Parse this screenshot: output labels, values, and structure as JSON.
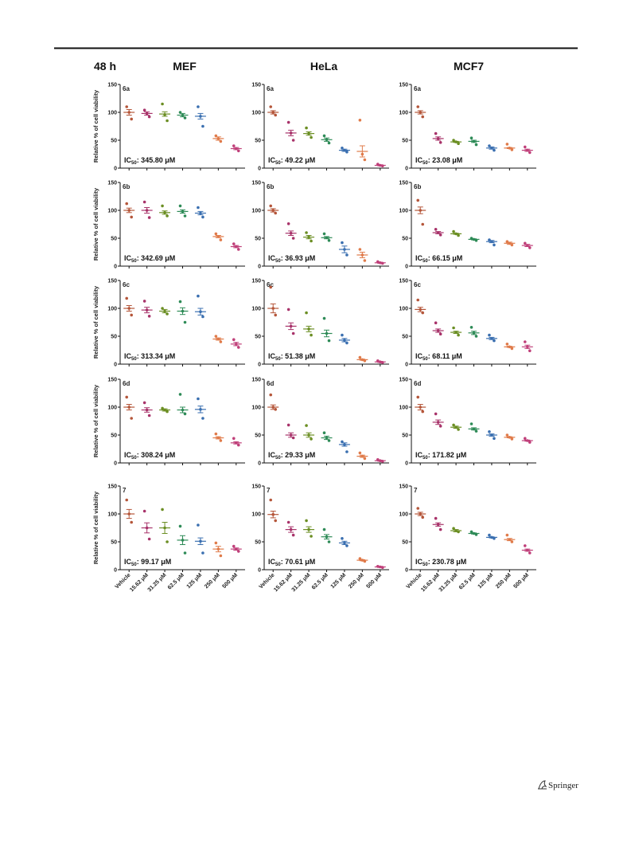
{
  "header": {
    "time": "48 h",
    "columns": [
      "MEF",
      "HeLa",
      "MCF7"
    ]
  },
  "footer": {
    "publisher": "Springer"
  },
  "chart_data": [
    {
      "type": "dotplot",
      "panel": "6a",
      "ylabel": "Relative % of cell viability",
      "ylim": [
        0,
        150
      ],
      "yticks": [
        0,
        50,
        100,
        150
      ],
      "ic50_prefix": "IC",
      "ic50_sub": "50",
      "ic50_value": ": 345.80 μM",
      "colors": [
        "#b5563a",
        "#a8336a",
        "#6b8e23",
        "#2e8b57",
        "#3a6fb0",
        "#e07b4a",
        "#c0407a"
      ],
      "means": [
        100,
        98,
        97,
        95,
        93,
        53,
        35
      ],
      "sem": [
        5,
        3,
        4,
        3,
        5,
        3,
        2
      ],
      "points": [
        [
          110,
          100,
          88
        ],
        [
          104,
          98,
          92
        ],
        [
          115,
          96,
          85
        ],
        [
          100,
          95,
          90
        ],
        [
          110,
          93,
          75
        ],
        [
          58,
          53,
          48
        ],
        [
          40,
          35,
          31
        ]
      ]
    },
    {
      "type": "dotplot",
      "panel": "6a",
      "ylim": [
        0,
        150
      ],
      "yticks": [
        0,
        50,
        100,
        150
      ],
      "ic50_prefix": "IC",
      "ic50_sub": "50",
      "ic50_value": ": 49.22 μM",
      "colors": [
        "#b5563a",
        "#a8336a",
        "#6b8e23",
        "#2e8b57",
        "#3a6fb0",
        "#e07b4a",
        "#c0407a"
      ],
      "means": [
        100,
        63,
        62,
        51,
        32,
        30,
        5
      ],
      "sem": [
        3,
        5,
        3,
        3,
        2,
        10,
        1
      ],
      "points": [
        [
          110,
          100,
          95
        ],
        [
          82,
          63,
          50
        ],
        [
          72,
          62,
          55
        ],
        [
          58,
          51,
          45
        ],
        [
          36,
          32,
          29
        ],
        [
          86,
          25,
          15
        ],
        [
          7,
          5,
          4
        ]
      ]
    },
    {
      "type": "dotplot",
      "panel": "6a",
      "ylim": [
        0,
        150
      ],
      "yticks": [
        0,
        50,
        100,
        150
      ],
      "ic50_prefix": "IC",
      "ic50_sub": "50",
      "ic50_value": ": 23.08 μM",
      "colors": [
        "#b5563a",
        "#a8336a",
        "#6b8e23",
        "#2e8b57",
        "#3a6fb0",
        "#e07b4a",
        "#c0407a"
      ],
      "means": [
        100,
        53,
        47,
        48,
        36,
        36,
        32
      ],
      "sem": [
        3,
        3,
        1,
        2,
        2,
        1,
        2
      ],
      "points": [
        [
          110,
          100,
          92
        ],
        [
          62,
          53,
          46
        ],
        [
          50,
          47,
          44
        ],
        [
          54,
          48,
          42
        ],
        [
          40,
          36,
          32
        ],
        [
          43,
          36,
          33
        ],
        [
          38,
          32,
          28
        ]
      ]
    },
    {
      "type": "dotplot",
      "panel": "6b",
      "ylabel": "Relative % of cell viability",
      "ylim": [
        0,
        150
      ],
      "yticks": [
        0,
        50,
        100,
        150
      ],
      "ic50_prefix": "IC",
      "ic50_sub": "50",
      "ic50_value": ": 342.69 μM",
      "colors": [
        "#b5563a",
        "#a8336a",
        "#6b8e23",
        "#2e8b57",
        "#3a6fb0",
        "#e07b4a",
        "#c0407a"
      ],
      "means": [
        100,
        100,
        96,
        98,
        95,
        53,
        35
      ],
      "sem": [
        4,
        5,
        3,
        3,
        3,
        2,
        2
      ],
      "points": [
        [
          112,
          100,
          88
        ],
        [
          115,
          100,
          87
        ],
        [
          108,
          96,
          90
        ],
        [
          108,
          98,
          90
        ],
        [
          105,
          95,
          88
        ],
        [
          58,
          53,
          47
        ],
        [
          40,
          35,
          30
        ]
      ]
    },
    {
      "type": "dotplot",
      "panel": "6b",
      "ylim": [
        0,
        150
      ],
      "yticks": [
        0,
        50,
        100,
        150
      ],
      "ic50_prefix": "IC",
      "ic50_sub": "50",
      "ic50_value": ": 36.93 μM",
      "colors": [
        "#b5563a",
        "#a8336a",
        "#6b8e23",
        "#2e8b57",
        "#3a6fb0",
        "#e07b4a",
        "#c0407a"
      ],
      "means": [
        100,
        59,
        52,
        51,
        30,
        20,
        6
      ],
      "sem": [
        3,
        4,
        3,
        2,
        6,
        5,
        1
      ],
      "points": [
        [
          108,
          100,
          95
        ],
        [
          76,
          59,
          50
        ],
        [
          60,
          52,
          45
        ],
        [
          58,
          51,
          46
        ],
        [
          42,
          30,
          20
        ],
        [
          30,
          20,
          10
        ],
        [
          8,
          6,
          5
        ]
      ]
    },
    {
      "type": "dotplot",
      "panel": "6b",
      "ylim": [
        0,
        150
      ],
      "yticks": [
        0,
        50,
        100,
        150
      ],
      "ic50_prefix": "IC",
      "ic50_sub": "50",
      "ic50_value": ": 66.15 μM",
      "colors": [
        "#b5563a",
        "#a8336a",
        "#6b8e23",
        "#2e8b57",
        "#3a6fb0",
        "#e07b4a",
        "#c0407a"
      ],
      "means": [
        100,
        60,
        58,
        48,
        44,
        41,
        37
      ],
      "sem": [
        6,
        2,
        1,
        1,
        2,
        2,
        2
      ],
      "points": [
        [
          118,
          100,
          75
        ],
        [
          66,
          60,
          56
        ],
        [
          62,
          58,
          55
        ],
        [
          50,
          48,
          46
        ],
        [
          47,
          44,
          38
        ],
        [
          44,
          41,
          38
        ],
        [
          41,
          37,
          33
        ]
      ]
    },
    {
      "type": "dotplot",
      "panel": "6c",
      "ylabel": "Relative % of cell viability",
      "ylim": [
        0,
        150
      ],
      "yticks": [
        0,
        50,
        100,
        150
      ],
      "ic50_prefix": "IC",
      "ic50_sub": "50",
      "ic50_value": ": 313.34 μM",
      "colors": [
        "#b5563a",
        "#a8336a",
        "#6b8e23",
        "#2e8b57",
        "#3a6fb0",
        "#e07b4a",
        "#c0407a"
      ],
      "means": [
        100,
        97,
        95,
        95,
        94,
        45,
        36
      ],
      "sem": [
        5,
        5,
        3,
        6,
        6,
        2,
        3
      ],
      "points": [
        [
          118,
          100,
          88
        ],
        [
          113,
          97,
          86
        ],
        [
          100,
          95,
          90
        ],
        [
          112,
          95,
          75
        ],
        [
          122,
          94,
          85
        ],
        [
          50,
          45,
          40
        ],
        [
          44,
          36,
          30
        ]
      ]
    },
    {
      "type": "dotplot",
      "panel": "6c",
      "ylim": [
        0,
        150
      ],
      "yticks": [
        0,
        50,
        100,
        150
      ],
      "ic50_prefix": "IC",
      "ic50_sub": "50",
      "ic50_value": ": 51.38 μM",
      "colors": [
        "#b5563a",
        "#a8336a",
        "#6b8e23",
        "#2e8b57",
        "#3a6fb0",
        "#e07b4a",
        "#c0407a"
      ],
      "means": [
        100,
        68,
        63,
        55,
        43,
        8,
        4
      ],
      "sem": [
        8,
        6,
        5,
        6,
        3,
        1,
        1
      ],
      "points": [
        [
          138,
          100,
          88
        ],
        [
          98,
          68,
          55
        ],
        [
          92,
          63,
          52
        ],
        [
          82,
          55,
          42
        ],
        [
          52,
          43,
          38
        ],
        [
          12,
          8,
          6
        ],
        [
          6,
          4,
          3
        ]
      ]
    },
    {
      "type": "dotplot",
      "panel": "6c",
      "ylim": [
        0,
        150
      ],
      "yticks": [
        0,
        50,
        100,
        150
      ],
      "ic50_prefix": "IC",
      "ic50_sub": "50",
      "ic50_value": ": 68.11 μM",
      "colors": [
        "#b5563a",
        "#a8336a",
        "#6b8e23",
        "#2e8b57",
        "#3a6fb0",
        "#e07b4a",
        "#c0407a"
      ],
      "means": [
        98,
        60,
        57,
        56,
        46,
        31,
        31
      ],
      "sem": [
        4,
        3,
        2,
        3,
        2,
        1,
        3
      ],
      "points": [
        [
          115,
          98,
          92
        ],
        [
          74,
          60,
          54
        ],
        [
          65,
          57,
          52
        ],
        [
          66,
          56,
          50
        ],
        [
          52,
          46,
          42
        ],
        [
          36,
          31,
          28
        ],
        [
          40,
          31,
          24
        ]
      ]
    },
    {
      "type": "dotplot",
      "panel": "6d",
      "ylabel": "Relative % of cell viability",
      "ylim": [
        0,
        150
      ],
      "yticks": [
        0,
        50,
        100,
        150
      ],
      "ic50_prefix": "IC",
      "ic50_sub": "50",
      "ic50_value": ": 308.24 μM",
      "colors": [
        "#b5563a",
        "#a8336a",
        "#6b8e23",
        "#2e8b57",
        "#3a6fb0",
        "#e07b4a",
        "#c0407a"
      ],
      "means": [
        100,
        95,
        95,
        95,
        96,
        45,
        36
      ],
      "sem": [
        5,
        4,
        2,
        5,
        6,
        2,
        2
      ],
      "points": [
        [
          118,
          100,
          80
        ],
        [
          108,
          95,
          85
        ],
        [
          98,
          95,
          92
        ],
        [
          123,
          95,
          88
        ],
        [
          115,
          96,
          80
        ],
        [
          52,
          45,
          40
        ],
        [
          44,
          36,
          32
        ]
      ]
    },
    {
      "type": "dotplot",
      "panel": "6d",
      "ylim": [
        0,
        150
      ],
      "yticks": [
        0,
        50,
        100,
        150
      ],
      "ic50_prefix": "IC",
      "ic50_sub": "50",
      "ic50_value": ": 29.33 μM",
      "colors": [
        "#b5563a",
        "#a8336a",
        "#6b8e23",
        "#2e8b57",
        "#3a6fb0",
        "#e07b4a",
        "#c0407a"
      ],
      "means": [
        100,
        50,
        50,
        45,
        33,
        12,
        4
      ],
      "sem": [
        4,
        4,
        4,
        3,
        3,
        2,
        1
      ],
      "points": [
        [
          122,
          100,
          96
        ],
        [
          68,
          50,
          45
        ],
        [
          67,
          50,
          43
        ],
        [
          54,
          45,
          40
        ],
        [
          38,
          33,
          20
        ],
        [
          18,
          12,
          8
        ],
        [
          6,
          4,
          3
        ]
      ]
    },
    {
      "type": "dotplot",
      "panel": "6d",
      "ylim": [
        0,
        150
      ],
      "yticks": [
        0,
        50,
        100,
        150
      ],
      "ic50_prefix": "IC",
      "ic50_sub": "50",
      "ic50_value": ": 171.82 μM",
      "colors": [
        "#b5563a",
        "#a8336a",
        "#6b8e23",
        "#2e8b57",
        "#3a6fb0",
        "#e07b4a",
        "#c0407a"
      ],
      "means": [
        100,
        73,
        64,
        61,
        50,
        46,
        40
      ],
      "sem": [
        5,
        4,
        2,
        2,
        2,
        1,
        1
      ],
      "points": [
        [
          118,
          100,
          92
        ],
        [
          88,
          73,
          66
        ],
        [
          68,
          64,
          60
        ],
        [
          70,
          61,
          57
        ],
        [
          56,
          50,
          44
        ],
        [
          50,
          46,
          43
        ],
        [
          44,
          40,
          37
        ]
      ]
    },
    {
      "type": "dotplot",
      "panel": "7",
      "ylabel": "Relative % of cell viability",
      "ylim": [
        0,
        150
      ],
      "yticks": [
        0,
        50,
        100,
        150
      ],
      "categories": [
        "Vehicle",
        "15.62 μM",
        "31.25 μM",
        "62.5 μM",
        "125 μM",
        "250 μM",
        "500 μM"
      ],
      "ic50_prefix": "IC",
      "ic50_sub": "50",
      "ic50_value": ": 99.17 μM",
      "colors": [
        "#b5563a",
        "#a8336a",
        "#6b8e23",
        "#2e8b57",
        "#3a6fb0",
        "#e07b4a",
        "#c0407a"
      ],
      "means": [
        100,
        75,
        75,
        53,
        51,
        37,
        37
      ],
      "sem": [
        8,
        9,
        10,
        8,
        6,
        5,
        2
      ],
      "points": [
        [
          125,
          100,
          85
        ],
        [
          105,
          75,
          55
        ],
        [
          108,
          75,
          50
        ],
        [
          78,
          53,
          30
        ],
        [
          80,
          51,
          30
        ],
        [
          48,
          37,
          25
        ],
        [
          42,
          37,
          33
        ]
      ]
    },
    {
      "type": "dotplot",
      "panel": "7",
      "ylim": [
        0,
        150
      ],
      "yticks": [
        0,
        50,
        100,
        150
      ],
      "categories": [
        "Vehicle",
        "15.62 μM",
        "31.25 μM",
        "62.5 μM",
        "125 μM",
        "250 μM",
        "500 μM"
      ],
      "ic50_prefix": "IC",
      "ic50_sub": "50",
      "ic50_value": ": 70.61 μM",
      "colors": [
        "#b5563a",
        "#a8336a",
        "#6b8e23",
        "#2e8b57",
        "#3a6fb0",
        "#e07b4a",
        "#c0407a"
      ],
      "means": [
        99,
        72,
        72,
        59,
        48,
        17,
        5
      ],
      "sem": [
        6,
        5,
        5,
        4,
        3,
        1,
        1
      ],
      "points": [
        [
          125,
          99,
          88
        ],
        [
          85,
          72,
          62
        ],
        [
          88,
          72,
          60
        ],
        [
          72,
          59,
          50
        ],
        [
          56,
          48,
          43
        ],
        [
          20,
          17,
          15
        ],
        [
          6,
          5,
          4
        ]
      ]
    },
    {
      "type": "dotplot",
      "panel": "7",
      "ylim": [
        0,
        150
      ],
      "yticks": [
        0,
        50,
        100,
        150
      ],
      "categories": [
        "Vehicle",
        "15.62 μM",
        "31.25 μM",
        "62.5 μM",
        "125 μM",
        "250 μM",
        "500 μM"
      ],
      "ic50_prefix": "IC",
      "ic50_sub": "50",
      "ic50_value": ": 230.78 μM",
      "colors": [
        "#b5563a",
        "#a8336a",
        "#6b8e23",
        "#2e8b57",
        "#3a6fb0",
        "#e07b4a",
        "#c0407a"
      ],
      "means": [
        100,
        81,
        70,
        65,
        58,
        54,
        35
      ],
      "sem": [
        3,
        3,
        2,
        1,
        1,
        2,
        2
      ],
      "points": [
        [
          110,
          100,
          94
        ],
        [
          92,
          81,
          72
        ],
        [
          74,
          70,
          68
        ],
        [
          68,
          65,
          63
        ],
        [
          62,
          58,
          56
        ],
        [
          62,
          54,
          50
        ],
        [
          43,
          35,
          30
        ]
      ]
    }
  ]
}
